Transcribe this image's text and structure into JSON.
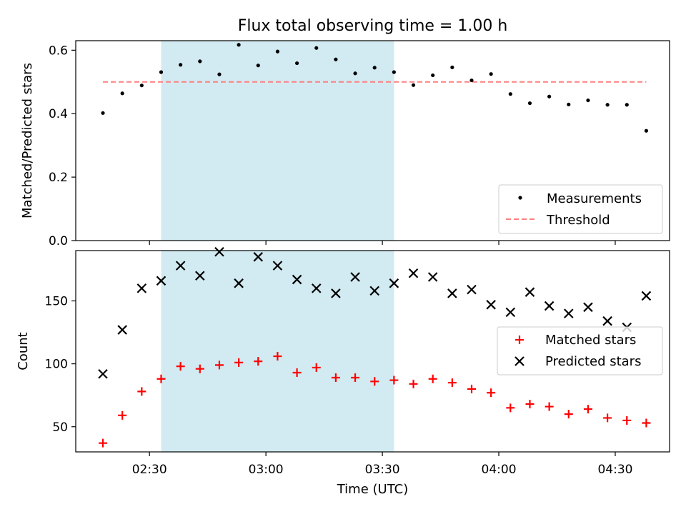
{
  "chart_data": [
    {
      "type": "scatter",
      "title": "Flux total observing time = 1.00 h",
      "xlabel": "",
      "ylabel": "Matched/Predicted stars",
      "ylim": [
        0,
        0.63
      ],
      "yticks": [
        0.0,
        0.2,
        0.4,
        0.6
      ],
      "ytick_labels": [
        "0.0",
        "0.2",
        "0.4",
        "0.6"
      ],
      "shaded_region": {
        "x_start": "02:33",
        "x_end": "03:33",
        "color": "#add8e6"
      },
      "legend_position": "lower-right",
      "series": [
        {
          "name": "Measurements",
          "marker": "dot",
          "color": "#000000",
          "x": [
            "02:18",
            "02:23",
            "02:28",
            "02:33",
            "02:38",
            "02:43",
            "02:48",
            "02:53",
            "02:58",
            "03:03",
            "03:08",
            "03:13",
            "03:18",
            "03:23",
            "03:28",
            "03:33",
            "03:38",
            "03:43",
            "03:48",
            "03:53",
            "03:58",
            "04:03",
            "04:08",
            "04:13",
            "04:18",
            "04:23",
            "04:28",
            "04:33",
            "04:38"
          ],
          "y": [
            0.402,
            0.464,
            0.489,
            0.531,
            0.554,
            0.565,
            0.524,
            0.617,
            0.552,
            0.596,
            0.559,
            0.607,
            0.571,
            0.527,
            0.545,
            0.531,
            0.49,
            0.521,
            0.546,
            0.505,
            0.525,
            0.462,
            0.433,
            0.454,
            0.429,
            0.442,
            0.428,
            0.428,
            0.346
          ]
        },
        {
          "name": "Threshold",
          "line": "dashed",
          "color": "#ff7f7f",
          "x": [
            "02:18",
            "04:38"
          ],
          "y": [
            0.5,
            0.5
          ]
        }
      ]
    },
    {
      "type": "scatter",
      "title": "",
      "xlabel": "Time (UTC)",
      "ylabel": "Count",
      "ylim": [
        30,
        190
      ],
      "yticks": [
        50,
        100,
        150
      ],
      "ytick_labels": [
        "50",
        "100",
        "150"
      ],
      "xlim": [
        "02:11",
        "04:44"
      ],
      "xticks": [
        "02:30",
        "03:00",
        "03:30",
        "04:00",
        "04:30"
      ],
      "shaded_region": {
        "x_start": "02:33",
        "x_end": "03:33",
        "color": "#add8e6"
      },
      "legend_position": "center-right",
      "series": [
        {
          "name": "Matched stars",
          "marker": "plus",
          "color": "#ff0000",
          "x": [
            "02:18",
            "02:23",
            "02:28",
            "02:33",
            "02:38",
            "02:43",
            "02:48",
            "02:53",
            "02:58",
            "03:03",
            "03:08",
            "03:13",
            "03:18",
            "03:23",
            "03:28",
            "03:33",
            "03:38",
            "03:43",
            "03:48",
            "03:53",
            "03:58",
            "04:03",
            "04:08",
            "04:13",
            "04:18",
            "04:23",
            "04:28",
            "04:33",
            "04:38"
          ],
          "y": [
            37,
            59,
            78,
            88,
            98,
            96,
            99,
            101,
            102,
            106,
            93,
            97,
            89,
            89,
            86,
            87,
            84,
            88,
            85,
            80,
            77,
            65,
            68,
            66,
            60,
            64,
            57,
            55,
            53
          ]
        },
        {
          "name": "Predicted stars",
          "marker": "x",
          "color": "#000000",
          "x": [
            "02:18",
            "02:23",
            "02:28",
            "02:33",
            "02:38",
            "02:43",
            "02:48",
            "02:53",
            "02:58",
            "03:03",
            "03:08",
            "03:13",
            "03:18",
            "03:23",
            "03:28",
            "03:33",
            "03:38",
            "03:43",
            "03:48",
            "03:53",
            "03:58",
            "04:03",
            "04:08",
            "04:13",
            "04:18",
            "04:23",
            "04:28",
            "04:33",
            "04:38"
          ],
          "y": [
            92,
            127,
            160,
            166,
            178,
            170,
            189,
            164,
            185,
            178,
            167,
            160,
            156,
            169,
            158,
            164,
            172,
            169,
            156,
            159,
            147,
            141,
            157,
            146,
            140,
            145,
            134,
            129,
            154
          ]
        }
      ]
    }
  ]
}
